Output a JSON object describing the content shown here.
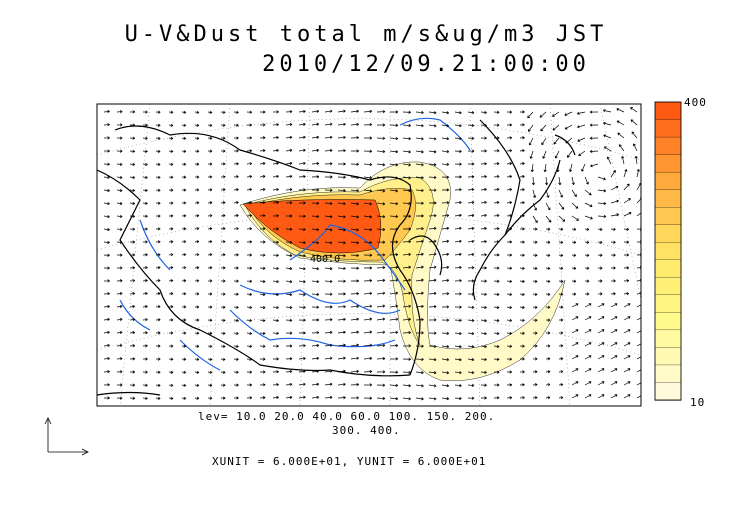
{
  "title": "U-V&Dust total m/s&ug/m3 JST",
  "datetime": "2010/12/09.21:00:00",
  "levels_line1": "lev= 10.0 20.0 40.0 60.0 100. 150. 200.",
  "levels_line2": "300. 400.",
  "unit_text": "XUNIT = 6.000E+01, YUNIT = 6.000E+01",
  "contour_label": "400.0",
  "colorbar": {
    "max_label": "400",
    "min_label": "10",
    "colors": [
      "#ff5a14",
      "#ff6e1e",
      "#ff8228",
      "#ff9632",
      "#ffaa3c",
      "#ffb946",
      "#ffc850",
      "#ffd75a",
      "#ffe164",
      "#ffeb6e",
      "#fff078",
      "#fff582",
      "#fffa8c",
      "#fffaa0",
      "#fffab4",
      "#fffac8",
      "#fffadc"
    ]
  },
  "colors": {
    "coast": "#000000",
    "rivers": "#1e64e6",
    "dust_high": "#ff5014",
    "dust_low": "#fffac8"
  }
}
